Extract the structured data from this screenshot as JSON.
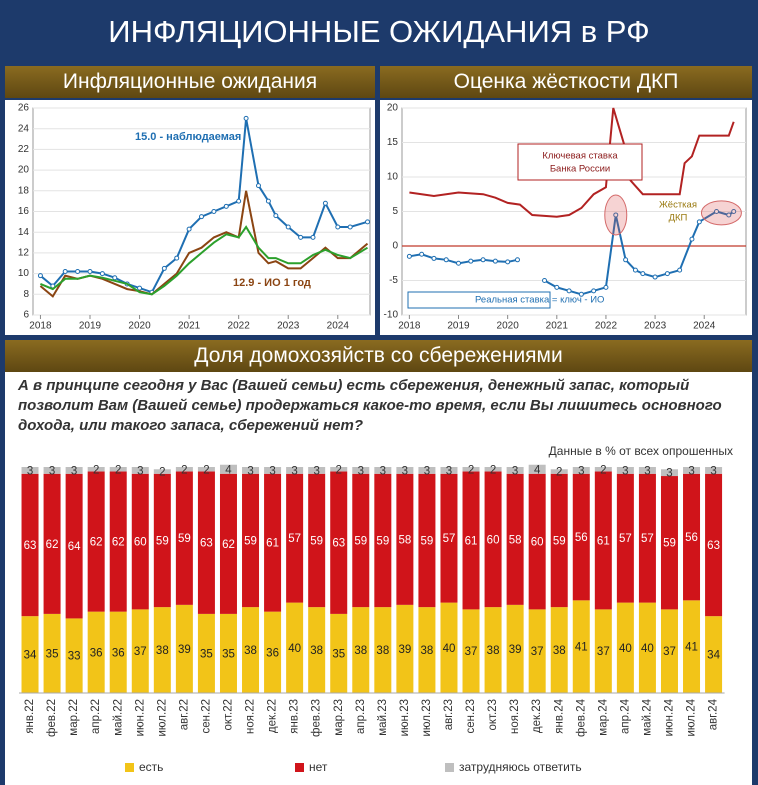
{
  "header": {
    "title": "ИНФЛЯЦИОННЫЕ ОЖИДАНИЯ в РФ"
  },
  "chart_data": [
    {
      "type": "line",
      "title": "Инфляционные ожидания",
      "xlim": [
        2017.85,
        2024.65
      ],
      "xticks": [
        2018,
        2019,
        2020,
        2021,
        2022,
        2023,
        2024
      ],
      "ylim": [
        6,
        26
      ],
      "yticks": [
        6,
        8,
        10,
        12,
        14,
        16,
        18,
        20,
        22,
        24,
        26
      ],
      "grid": true,
      "annotations": [
        "15.0 - наблюдаемая",
        "12.9 - ИО 1 год"
      ],
      "series": [
        {
          "color": "#1f6fb2",
          "markers": true,
          "x": [
            2018,
            2018.25,
            2018.5,
            2018.75,
            2019,
            2019.25,
            2019.5,
            2019.75,
            2020,
            2020.25,
            2020.5,
            2020.75,
            2021,
            2021.25,
            2021.5,
            2021.75,
            2022,
            2022.15,
            2022.4,
            2022.6,
            2022.75,
            2023,
            2023.25,
            2023.5,
            2023.75,
            2024,
            2024.25,
            2024.6
          ],
          "values": [
            9.8,
            8.8,
            10.2,
            10.2,
            10.2,
            10,
            9.6,
            9,
            8.6,
            8.2,
            10.5,
            11.5,
            14.3,
            15.5,
            16,
            16.5,
            17,
            25,
            18.5,
            17,
            15.6,
            14.5,
            13.5,
            13.5,
            16.8,
            14.5,
            14.5,
            15
          ]
        },
        {
          "color": "#8b4513",
          "x": [
            2018,
            2018.25,
            2018.5,
            2018.75,
            2019,
            2019.25,
            2019.5,
            2019.75,
            2020,
            2020.25,
            2020.5,
            2020.75,
            2021,
            2021.25,
            2021.5,
            2021.75,
            2022,
            2022.15,
            2022.4,
            2022.6,
            2022.75,
            2023,
            2023.25,
            2023.5,
            2023.75,
            2024,
            2024.25,
            2024.6
          ],
          "values": [
            8.8,
            7.8,
            9.8,
            9.5,
            9.8,
            9.5,
            9,
            8.5,
            8.3,
            8,
            9,
            10,
            12,
            12.5,
            13.5,
            14,
            13.5,
            18,
            12,
            11,
            11.2,
            10.5,
            10.5,
            11.5,
            12.5,
            11.5,
            11.5,
            12.9
          ]
        },
        {
          "color": "#2ca02c",
          "x": [
            2018,
            2018.25,
            2018.5,
            2018.75,
            2019,
            2019.25,
            2019.5,
            2019.75,
            2020,
            2020.25,
            2020.5,
            2020.75,
            2021,
            2021.25,
            2021.5,
            2021.75,
            2022,
            2022.15,
            2022.4,
            2022.6,
            2022.75,
            2023,
            2023.25,
            2023.5,
            2023.75,
            2024,
            2024.25,
            2024.6
          ],
          "values": [
            9,
            8.5,
            9.5,
            9.5,
            9.8,
            9.6,
            9.3,
            9,
            8.2,
            8,
            8.8,
            9.8,
            11,
            12,
            13,
            13.8,
            13.5,
            14.5,
            12.5,
            11.5,
            11.5,
            11,
            11,
            11.8,
            12.3,
            11.8,
            11.5,
            12.5
          ]
        }
      ]
    },
    {
      "type": "line",
      "title": "Оценка жёсткости ДКП",
      "xlim": [
        2017.85,
        2024.85
      ],
      "xticks": [
        2018,
        2019,
        2020,
        2021,
        2022,
        2023,
        2024
      ],
      "ylim": [
        -10,
        20
      ],
      "yticks": [
        -10,
        -5,
        0,
        5,
        10,
        15,
        20
      ],
      "grid": true,
      "reference_line": {
        "value": 0,
        "color": "#c0392b"
      },
      "annotations": [
        [
          "Ключевая ставка",
          "Банка России"
        ],
        [
          "Жёсткая",
          "ДКП"
        ],
        "Реальная ставка = ключ - ИО"
      ],
      "series": [
        {
          "color": "#b22222",
          "x": [
            2018,
            2018.5,
            2019,
            2019.5,
            2019.75,
            2020,
            2020.25,
            2020.5,
            2021,
            2021.25,
            2021.5,
            2021.75,
            2022,
            2022.15,
            2022.4,
            2022.5,
            2022.75,
            2023,
            2023.5,
            2023.6,
            2023.75,
            2023.9,
            2024.5,
            2024.6
          ],
          "values": [
            7.75,
            7.25,
            7.75,
            7.5,
            7,
            6.25,
            6,
            4.5,
            4.25,
            4.5,
            5.5,
            7.5,
            8.5,
            20,
            14,
            9.5,
            7.5,
            7.5,
            7.5,
            12,
            13,
            16,
            16,
            18
          ]
        },
        {
          "color": "#1f6fb2",
          "markers": true,
          "x": [
            2018,
            2018.25,
            2018.5,
            2018.75,
            2019,
            2019.25,
            2019.5,
            2019.75,
            2020,
            2020.2,
            2020.5,
            2020.75,
            2021,
            2021.25,
            2021.5,
            2021.75,
            2022,
            2022.2,
            2022.4,
            2022.6,
            2022.75,
            2023,
            2023.25,
            2023.5,
            2023.75,
            2023.9,
            2024.25,
            2024.5,
            2024.6
          ],
          "values": [
            -1.5,
            -1.2,
            -1.8,
            -2,
            -2.5,
            -2.2,
            -2,
            -2.2,
            -2.3,
            -2,
            null,
            -5,
            -6,
            -6.5,
            -7,
            -6.5,
            -6,
            4.5,
            -2,
            -3.5,
            -4,
            -4.5,
            -4,
            -3.5,
            1,
            3.5,
            5,
            4.5,
            5
          ]
        }
      ]
    },
    {
      "type": "stacked_bar",
      "title": "Доля домохозяйств со сбережениями",
      "subtitle": "А в принципе сегодня у Вас (Вашей семьи) есть сбережения, денежный запас, который позволит Вам (Вашей семье) продержаться какое-то время, если Вы лишитесь основного дохода, или такого запаса, сбережений нет?",
      "note": "Данные в % от всех опрошенных",
      "ylim": [
        0,
        100
      ],
      "categories": [
        "янв.22",
        "фев.22",
        "мар.22",
        "апр.22",
        "май.22",
        "июн.22",
        "июл.22",
        "авг.22",
        "сен.22",
        "окт.22",
        "ноя.22",
        "дек.22",
        "янв.23",
        "фев.23",
        "мар.23",
        "апр.23",
        "май.23",
        "июн.23",
        "июл.23",
        "авг.23",
        "сен.23",
        "окт.23",
        "ноя.23",
        "дек.23",
        "янв.24",
        "фев.24",
        "мар.24",
        "апр.24",
        "май.24",
        "июн.24",
        "июл.24",
        "авг.24"
      ],
      "series": [
        {
          "name": "есть",
          "color": "#f2c418",
          "label_color": "#222",
          "values": [
            34,
            35,
            33,
            36,
            36,
            37,
            38,
            39,
            35,
            35,
            38,
            36,
            40,
            38,
            35,
            38,
            38,
            39,
            38,
            40,
            37,
            38,
            39,
            37,
            38,
            41,
            37,
            40,
            40,
            37,
            41,
            34
          ]
        },
        {
          "name": "нет",
          "color": "#d0141a",
          "label_color": "#fff",
          "values": [
            63,
            62,
            64,
            62,
            62,
            60,
            59,
            59,
            63,
            62,
            59,
            61,
            57,
            59,
            63,
            59,
            59,
            58,
            59,
            57,
            61,
            60,
            58,
            60,
            59,
            56,
            61,
            57,
            57,
            59,
            56,
            63
          ]
        },
        {
          "name": "затрудняюсь ответить",
          "color": "#bfbfbf",
          "label_color": "#333",
          "values": [
            3,
            3,
            3,
            2,
            2,
            3,
            2,
            2,
            2,
            4,
            3,
            3,
            3,
            3,
            2,
            3,
            3,
            3,
            3,
            3,
            2,
            2,
            3,
            4,
            2,
            3,
            2,
            3,
            3,
            3,
            3,
            3
          ]
        }
      ]
    }
  ]
}
